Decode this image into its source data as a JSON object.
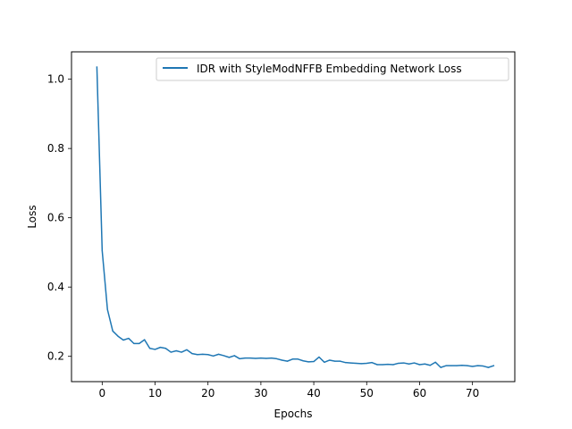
{
  "chart_data": {
    "type": "line",
    "title": "",
    "xlabel": "Epochs",
    "ylabel": "Loss",
    "xlim": [
      -5.8,
      78.0
    ],
    "ylim": [
      0.127,
      1.079
    ],
    "xticks": [
      0,
      10,
      20,
      30,
      40,
      50,
      60,
      70
    ],
    "yticks": [
      0.2,
      0.4,
      0.6,
      0.8,
      1.0
    ],
    "xtick_labels": [
      "0",
      "10",
      "20",
      "30",
      "40",
      "50",
      "60",
      "70"
    ],
    "ytick_labels": [
      "0.2",
      "0.4",
      "0.6",
      "0.8",
      "1.0"
    ],
    "grid": false,
    "legend_position": "top-right",
    "series": [
      {
        "name": "IDR with StyleModNFFB Embedding Network Loss",
        "color": "#1f77b4",
        "x": [
          -1,
          0,
          1,
          2,
          3,
          4,
          5,
          6,
          7,
          8,
          9,
          10,
          11,
          12,
          13,
          14,
          15,
          16,
          17,
          18,
          19,
          20,
          21,
          22,
          23,
          24,
          25,
          26,
          27,
          28,
          29,
          30,
          31,
          32,
          33,
          34,
          35,
          36,
          37,
          38,
          39,
          40,
          41,
          42,
          43,
          44,
          45,
          46,
          47,
          48,
          49,
          50,
          51,
          52,
          53,
          54,
          55,
          56,
          57,
          58,
          59,
          60,
          61,
          62,
          63,
          64,
          65,
          66,
          67,
          68,
          69,
          70,
          71,
          72,
          73,
          74
        ],
        "values": [
          1.035,
          0.505,
          0.335,
          0.273,
          0.258,
          0.247,
          0.252,
          0.237,
          0.237,
          0.248,
          0.223,
          0.22,
          0.226,
          0.223,
          0.212,
          0.216,
          0.212,
          0.219,
          0.208,
          0.205,
          0.206,
          0.205,
          0.201,
          0.206,
          0.202,
          0.197,
          0.202,
          0.193,
          0.195,
          0.195,
          0.194,
          0.195,
          0.194,
          0.195,
          0.193,
          0.189,
          0.186,
          0.192,
          0.192,
          0.187,
          0.184,
          0.185,
          0.198,
          0.183,
          0.189,
          0.186,
          0.186,
          0.182,
          0.181,
          0.18,
          0.179,
          0.18,
          0.182,
          0.176,
          0.176,
          0.177,
          0.176,
          0.18,
          0.181,
          0.178,
          0.181,
          0.176,
          0.178,
          0.174,
          0.183,
          0.168,
          0.173,
          0.173,
          0.173,
          0.174,
          0.173,
          0.171,
          0.173,
          0.172,
          0.168,
          0.173
        ]
      }
    ]
  }
}
